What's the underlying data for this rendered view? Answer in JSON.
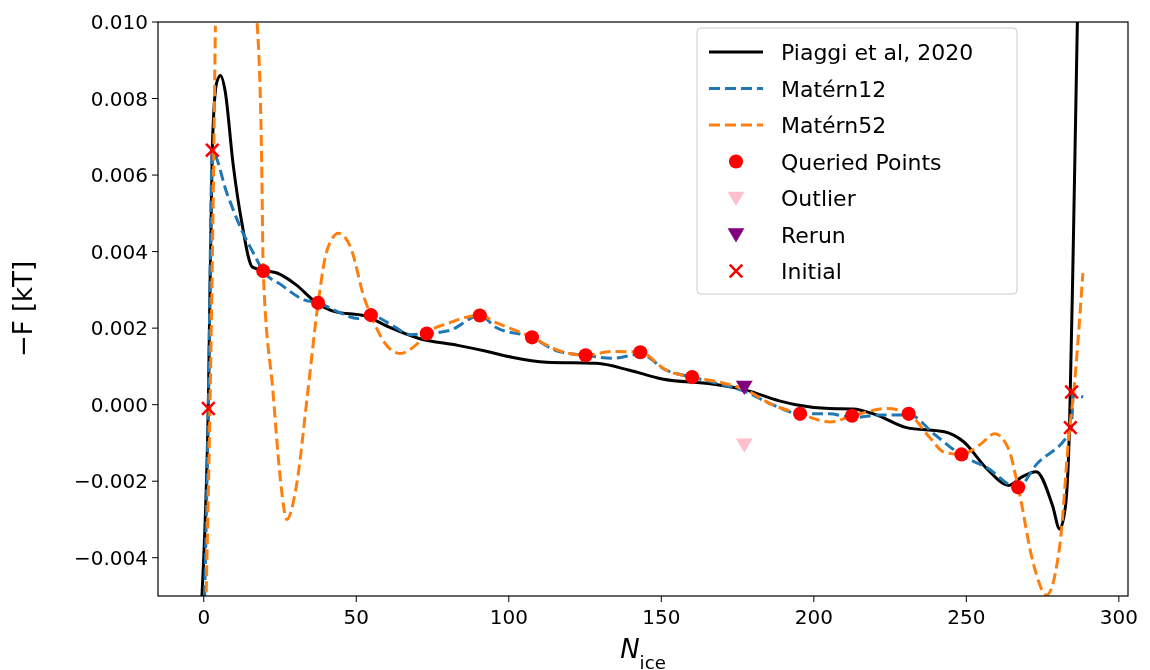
{
  "chart_data": {
    "type": "line",
    "xlabel": "N$_{ice}$",
    "ylabel": "−F [kT]",
    "xlim": [
      -15,
      303
    ],
    "ylim": [
      -0.005,
      0.01
    ],
    "xticks": [
      0,
      50,
      100,
      150,
      200,
      250,
      300
    ],
    "yticks": [
      {
        "value": -0.004,
        "label": "−0.004"
      },
      {
        "value": -0.002,
        "label": "−0.002"
      },
      {
        "value": 0,
        "label": "0.000"
      },
      {
        "value": 0.002,
        "label": "0.002"
      },
      {
        "value": 0.004,
        "label": "0.004"
      },
      {
        "value": 0.006,
        "label": "0.006"
      },
      {
        "value": 0.008,
        "label": "0.008"
      },
      {
        "value": 0.01,
        "label": "0.010"
      }
    ],
    "grid": false,
    "legend": "top right",
    "series": [
      {
        "name": "Piaggi et al, 2020",
        "color": "#000000",
        "line_style": "solid",
        "marker": "none",
        "x": [
          -0.6,
          1.5,
          2.8,
          4.2,
          5.5,
          7,
          9.6,
          12.6,
          15.9,
          20.1,
          24,
          30.3,
          36.5,
          43,
          52.8,
          60.4,
          70.6,
          83.3,
          93,
          101,
          112.4,
          128.7,
          139.6,
          150.3,
          166.7,
          177.8,
          188.7,
          194.1,
          205,
          212.8,
          220.3,
          230.4,
          242.8,
          249.1,
          256.7,
          264,
          268,
          272.9,
          278.3,
          280.6,
          282.5,
          283.8,
          285.1,
          286.4
        ],
        "values": [
          -0.005,
          0,
          0.0067,
          0.0084,
          0.0086,
          0.0082,
          0.0063,
          0.0047,
          0.0036,
          0.0035,
          0.00344,
          0.00313,
          0.00269,
          0.00243,
          0.00232,
          0.00204,
          0.00173,
          0.00155,
          0.00139,
          0.00124,
          0.00111,
          0.00108,
          0.0009,
          0.00067,
          0.00054,
          0.00038,
          0.0001,
          0,
          -0.0001,
          -0.00011,
          -0.00026,
          -0.0006,
          -0.00071,
          -0.00097,
          -0.00167,
          -0.00211,
          -0.0019,
          -0.00175,
          -0.00265,
          -0.00325,
          -0.00265,
          -0.00066,
          0.00432,
          0.01
        ]
      },
      {
        "name": "Matérn12",
        "color": "#1f77b4",
        "line_style": "dashed",
        "marker": "none",
        "x": [
          0.3,
          1.5,
          2.8,
          7.7,
          12.6,
          16.5,
          19.5,
          25.4,
          32.9,
          37.5,
          45.3,
          50.5,
          54.8,
          60.4,
          68,
          73.1,
          80.6,
          90.5,
          96,
          107.6,
          115.6,
          125.2,
          134,
          143.1,
          151.6,
          160.1,
          169,
          177.8,
          186.4,
          195.5,
          205,
          213,
          221.7,
          231.5,
          239.3,
          248.6,
          256.6,
          266.8,
          273,
          284.4,
          285.1,
          288.3
        ],
        "values": [
          -0.005,
          -0.0001,
          0.0066,
          0.0055,
          0.00453,
          0.00393,
          0.00349,
          0.00313,
          0.00274,
          0.00266,
          0.00238,
          0.00225,
          0.00234,
          0.00214,
          0.00183,
          0.00186,
          0.00194,
          0.00233,
          0.00201,
          0.00176,
          0.00141,
          0.00129,
          0.00121,
          0.00132,
          0.0009,
          0.00072,
          0.00054,
          0.00033,
          0,
          -0.00024,
          -0.00024,
          -0.00034,
          -0.00027,
          -0.00027,
          -0.00076,
          -0.00133,
          -0.00164,
          -0.00216,
          -0.00156,
          -0.00063,
          0.00025,
          0.0002
        ]
      },
      {
        "name": "Matérn52",
        "color": "#ff7f0e",
        "line_style": "dashed",
        "marker": "none",
        "x": [
          0.8,
          2,
          3.3,
          3.8,
          null,
          17.5,
          19,
          19.5,
          22.7,
          25.4,
          27.2,
          30.3,
          34.1,
          37.5,
          40.4,
          44.2,
          48,
          52.8,
          54.8,
          59.2,
          64.3,
          70.5,
          73.1,
          80.6,
          86.9,
          90.5,
          96,
          107.6,
          115.6,
          125.2,
          134,
          143.1,
          151.6,
          160.1,
          169,
          177.8,
          186.4,
          195.5,
          205.3,
          212.8,
          224,
          231.1,
          238,
          242.9,
          248.4,
          254.4,
          259.3,
          263.8,
          267,
          272,
          276.3,
          280.7,
          283.8,
          285.1,
          288.2
        ],
        "values": [
          -0.0049,
          -0.0002,
          0.0066,
          0.0099,
          null,
          0.00997,
          0.0063,
          0.0035,
          0.00033,
          -0.00216,
          -0.003,
          -0.00216,
          0.00033,
          0.00266,
          0.00403,
          0.00448,
          0.00414,
          0.00274,
          0.00234,
          0.00163,
          0.00134,
          0.00163,
          0.00186,
          0.00214,
          0.0023,
          0.00233,
          0.00214,
          0.00176,
          0.00144,
          0.00129,
          0.00139,
          0.00137,
          0.0009,
          0.00072,
          0.00059,
          0.00038,
          0,
          -0.00024,
          -0.00045,
          -0.00029,
          -0.0001,
          -0.00024,
          -0.00086,
          -0.00125,
          -0.0013,
          -0.00105,
          -0.00076,
          -0.00115,
          -0.00216,
          -0.00416,
          -0.00498,
          -0.00364,
          -0.00066,
          0.00025,
          0.00344
        ]
      },
      {
        "name": "Queried Points",
        "type": "scatter",
        "color": "#ff0000",
        "marker": "circle",
        "x": [
          19.5,
          37.5,
          54.8,
          73.1,
          90.5,
          107.6,
          125.2,
          143.1,
          160.1,
          195.5,
          212.5,
          231.1,
          248.4,
          267
        ],
        "values": [
          0.00349,
          0.00266,
          0.00234,
          0.00186,
          0.00233,
          0.00176,
          0.00129,
          0.00137,
          0.00072,
          -0.00024,
          -0.00029,
          -0.00024,
          -0.0013,
          -0.00216
        ]
      },
      {
        "name": "Outlier",
        "type": "scatter",
        "color": "#ffc0cb",
        "marker": "triangle-down",
        "x": [
          177.2
        ],
        "values": [
          -0.00105
        ]
      },
      {
        "name": "Rerun",
        "type": "scatter",
        "color": "#800080",
        "marker": "triangle-down",
        "x": [
          177.2
        ],
        "values": [
          0.00046
        ]
      },
      {
        "name": "Initial",
        "type": "scatter",
        "color": "#ff0000",
        "marker": "cross",
        "x": [
          2.8,
          1.5,
          284.5,
          284.1
        ],
        "values": [
          0.00665,
          -0.0001,
          0.00033,
          -0.0006
        ]
      }
    ]
  }
}
